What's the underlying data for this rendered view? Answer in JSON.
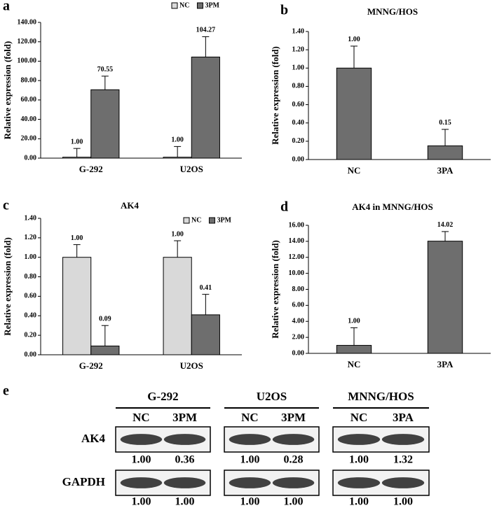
{
  "chart_data": [
    {
      "type": "bar",
      "panel": "a",
      "ylabel": "Relative expression (fold)",
      "categories": [
        "G-292",
        "U2OS"
      ],
      "series": [
        {
          "name": "NC",
          "color": "#d9d9d9",
          "values": [
            1,
            1
          ],
          "value_labels": [
            "1.00",
            "1.00"
          ],
          "errors": [
            9,
            11
          ]
        },
        {
          "name": "3PM",
          "color": "#6e6e6e",
          "values": [
            70.55,
            104.27
          ],
          "errors": [
            14,
            21
          ]
        }
      ],
      "ylim": [
        0,
        140
      ],
      "yticks": [
        {
          "value": 0,
          "label": "0.00"
        },
        {
          "value": 20,
          "label": "20.00"
        },
        {
          "value": 40,
          "label": "40.00"
        },
        {
          "value": 60,
          "label": "60.00"
        },
        {
          "value": 80,
          "label": "80.00"
        },
        {
          "value": 100,
          "label": "100.00"
        },
        {
          "value": 120,
          "label": "120.00"
        },
        {
          "value": 140,
          "label": "140.00"
        }
      ],
      "legend": "top"
    },
    {
      "type": "bar",
      "panel": "b",
      "title": "MNNG/HOS",
      "ylabel": "Relative expression (fold)",
      "categories": [
        "NC",
        "3PA"
      ],
      "series": [
        {
          "color": "#6e6e6e",
          "values": [
            1,
            0.15
          ],
          "value_labels": [
            "1.00",
            "0.15"
          ],
          "errors": [
            0.24,
            0.18
          ]
        }
      ],
      "ylim": [
        0,
        1.4
      ],
      "yticks": [
        {
          "value": 0,
          "label": "0.00"
        },
        {
          "value": 0.2,
          "label": "0.20"
        },
        {
          "value": 0.4,
          "label": "0.40"
        },
        {
          "value": 0.6,
          "label": "0.60"
        },
        {
          "value": 0.8,
          "label": "0.80"
        },
        {
          "value": 1,
          "label": "1.00"
        },
        {
          "value": 1.2,
          "label": "1.20"
        },
        {
          "value": 1.4,
          "label": "1.40"
        }
      ]
    },
    {
      "type": "bar",
      "panel": "c",
      "title": "AK4",
      "ylabel": "Relative expression (fold)",
      "categories": [
        "G-292",
        "U2OS"
      ],
      "series": [
        {
          "name": "NC",
          "color": "#d9d9d9",
          "values": [
            1,
            1
          ],
          "value_labels": [
            "1.00",
            "1.00"
          ],
          "errors": [
            0.13,
            0.17
          ]
        },
        {
          "name": "3PM",
          "color": "#6e6e6e",
          "values": [
            0.09,
            0.41
          ],
          "errors": [
            0.21,
            0.21
          ]
        }
      ],
      "ylim": [
        0,
        1.4
      ],
      "yticks": [
        {
          "value": 0,
          "label": "0.00"
        },
        {
          "value": 0.2,
          "label": "0.20"
        },
        {
          "value": 0.4,
          "label": "0.40"
        },
        {
          "value": 0.6,
          "label": "0.60"
        },
        {
          "value": 0.8,
          "label": "0.80"
        },
        {
          "value": 1,
          "label": "1.00"
        },
        {
          "value": 1.2,
          "label": "1.20"
        },
        {
          "value": 1.4,
          "label": "1.40"
        }
      ],
      "legend": "upper right"
    },
    {
      "type": "bar",
      "panel": "d",
      "title": "AK4 in MNNG/HOS",
      "ylabel": "Relative expression (fold)",
      "categories": [
        "NC",
        "3PA"
      ],
      "series": [
        {
          "color": "#6e6e6e",
          "values": [
            1,
            14.02
          ],
          "value_labels": [
            "1.00",
            "14.02"
          ],
          "errors": [
            2.2,
            1.2
          ]
        }
      ],
      "ylim": [
        0,
        16
      ],
      "yticks": [
        {
          "value": 0,
          "label": "0.00"
        },
        {
          "value": 2,
          "label": "2.00"
        },
        {
          "value": 4,
          "label": "4.00"
        },
        {
          "value": 6,
          "label": "6.00"
        },
        {
          "value": 8,
          "label": "8.00"
        },
        {
          "value": 10,
          "label": "10.00"
        },
        {
          "value": 12,
          "label": "12.00"
        },
        {
          "value": 14,
          "label": "14.00"
        },
        {
          "value": 16,
          "label": "16.00"
        }
      ]
    }
  ],
  "blot": {
    "panel": "e",
    "groups": [
      {
        "name": "G-292",
        "lanes": [
          "NC",
          "3PM"
        ]
      },
      {
        "name": "U2OS",
        "lanes": [
          "NC",
          "3PM"
        ]
      },
      {
        "name": "MNNG/HOS",
        "lanes": [
          "NC",
          "3PA"
        ]
      }
    ],
    "rows": [
      {
        "name": "AK4",
        "values": [
          "1.00",
          "0.36",
          "1.00",
          "0.28",
          "1.00",
          "1.32"
        ]
      },
      {
        "name": "GAPDH",
        "values": [
          "1.00",
          "1.00",
          "1.00",
          "1.00",
          "1.00",
          "1.00"
        ]
      }
    ]
  }
}
